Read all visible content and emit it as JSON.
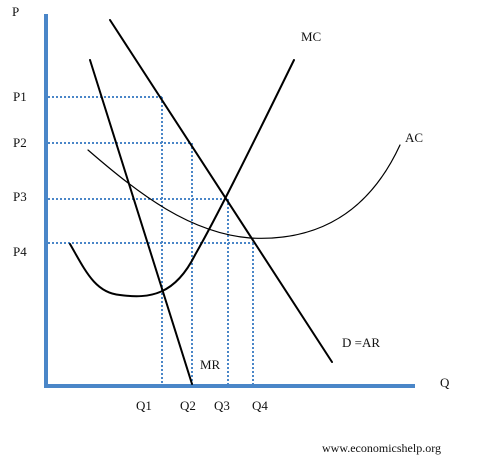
{
  "axes": {
    "y_label": "P",
    "x_label": "Q",
    "color": "#4a86c8"
  },
  "price_labels": [
    "P1",
    "P2",
    "P3",
    "P4"
  ],
  "quantity_labels": [
    "Q1",
    "Q2",
    "Q3",
    "Q4"
  ],
  "curve_labels": {
    "mc": "MC",
    "ac": "AC",
    "mr": "MR",
    "demand": "D =AR"
  },
  "guide_color": "#4a86c8",
  "curve_color": "#000000",
  "credit": "www.economicshelp.org"
}
